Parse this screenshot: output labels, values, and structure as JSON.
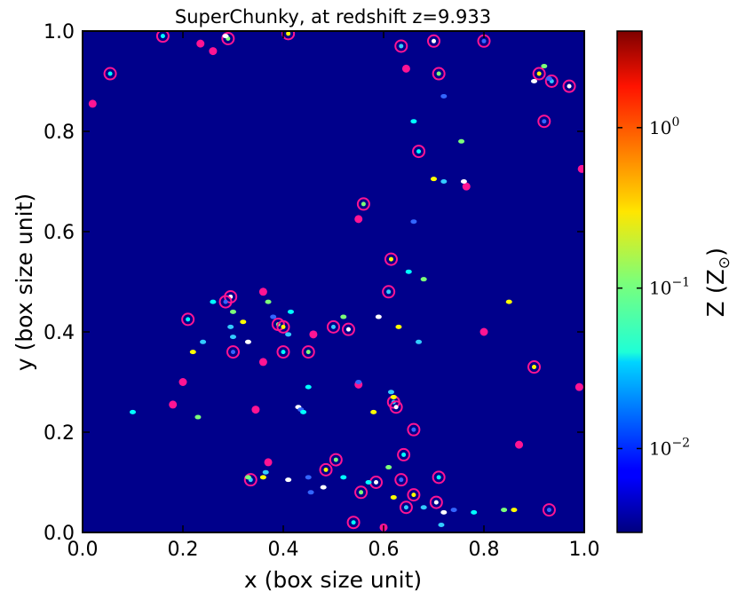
{
  "chart_data": {
    "type": "scatter",
    "title": "SuperChunky, at redshift z=9.933",
    "xlabel": "x (box size unit)",
    "ylabel": "y (box size unit)",
    "xlim": [
      0.0,
      1.0
    ],
    "ylim": [
      0.0,
      1.0
    ],
    "x_ticks": [
      "0.0",
      "0.2",
      "0.4",
      "0.6",
      "0.8",
      "1.0"
    ],
    "y_ticks": [
      "0.0",
      "0.2",
      "0.4",
      "0.6",
      "0.8",
      "1.0"
    ],
    "background_color": "#00008b",
    "marker_color": "#ff1493",
    "colorbar": {
      "label": "Z (Z",
      "label_symbol": "⊙",
      "label_close": ")",
      "scale": "log",
      "colormap": "jet",
      "ticks": [
        {
          "base": "10",
          "exp": "0",
          "value": 1.0
        },
        {
          "base": "10",
          "exp": "−1",
          "value": 0.1
        },
        {
          "base": "10",
          "exp": "−2",
          "value": 0.01
        }
      ],
      "range": [
        0.003,
        4.0
      ]
    },
    "series": [
      {
        "marker": "ring",
        "points": [
          [
            0.16,
            0.99
          ],
          [
            0.29,
            0.985
          ],
          [
            0.41,
            0.995
          ],
          [
            0.635,
            0.97
          ],
          [
            0.7,
            0.98
          ],
          [
            0.8,
            0.98
          ],
          [
            0.055,
            0.915
          ],
          [
            0.71,
            0.915
          ],
          [
            0.91,
            0.915
          ],
          [
            0.935,
            0.9
          ],
          [
            0.97,
            0.89
          ],
          [
            0.92,
            0.82
          ],
          [
            0.67,
            0.76
          ],
          [
            0.56,
            0.655
          ],
          [
            0.615,
            0.545
          ],
          [
            0.61,
            0.48
          ],
          [
            0.295,
            0.47
          ],
          [
            0.285,
            0.46
          ],
          [
            0.21,
            0.425
          ],
          [
            0.39,
            0.415
          ],
          [
            0.4,
            0.41
          ],
          [
            0.5,
            0.41
          ],
          [
            0.53,
            0.405
          ],
          [
            0.3,
            0.36
          ],
          [
            0.4,
            0.36
          ],
          [
            0.45,
            0.36
          ],
          [
            0.9,
            0.33
          ],
          [
            0.62,
            0.26
          ],
          [
            0.625,
            0.25
          ],
          [
            0.66,
            0.205
          ],
          [
            0.64,
            0.155
          ],
          [
            0.505,
            0.145
          ],
          [
            0.485,
            0.125
          ],
          [
            0.335,
            0.105
          ],
          [
            0.585,
            0.1
          ],
          [
            0.635,
            0.105
          ],
          [
            0.71,
            0.11
          ],
          [
            0.555,
            0.08
          ],
          [
            0.66,
            0.075
          ],
          [
            0.645,
            0.05
          ],
          [
            0.705,
            0.06
          ],
          [
            0.93,
            0.045
          ],
          [
            0.54,
            0.02
          ]
        ]
      },
      {
        "marker": "dot",
        "points": [
          [
            0.235,
            0.975
          ],
          [
            0.26,
            0.96
          ],
          [
            0.645,
            0.925
          ],
          [
            0.02,
            0.855
          ],
          [
            0.995,
            0.725
          ],
          [
            0.765,
            0.69
          ],
          [
            0.55,
            0.625
          ],
          [
            0.36,
            0.48
          ],
          [
            0.46,
            0.395
          ],
          [
            0.36,
            0.34
          ],
          [
            0.55,
            0.295
          ],
          [
            0.2,
            0.3
          ],
          [
            0.18,
            0.255
          ],
          [
            0.345,
            0.245
          ],
          [
            0.8,
            0.4
          ],
          [
            0.87,
            0.175
          ],
          [
            0.99,
            0.29
          ],
          [
            0.37,
            0.14
          ],
          [
            0.6,
            0.01
          ]
        ]
      },
      {
        "marker": "blob",
        "points": [
          [
            0.26,
            0.46
          ],
          [
            0.3,
            0.44
          ],
          [
            0.32,
            0.42
          ],
          [
            0.295,
            0.41
          ],
          [
            0.33,
            0.38
          ],
          [
            0.38,
            0.43
          ],
          [
            0.415,
            0.44
          ],
          [
            0.52,
            0.43
          ],
          [
            0.62,
            0.27
          ],
          [
            0.615,
            0.28
          ],
          [
            0.43,
            0.25
          ],
          [
            0.435,
            0.245
          ],
          [
            0.44,
            0.24
          ],
          [
            0.33,
            0.11
          ],
          [
            0.36,
            0.11
          ],
          [
            0.365,
            0.12
          ],
          [
            0.41,
            0.105
          ],
          [
            0.45,
            0.11
          ],
          [
            0.52,
            0.11
          ],
          [
            0.61,
            0.13
          ],
          [
            0.62,
            0.07
          ],
          [
            0.68,
            0.05
          ],
          [
            0.72,
            0.04
          ],
          [
            0.74,
            0.045
          ],
          [
            0.78,
            0.04
          ],
          [
            0.84,
            0.045
          ],
          [
            0.86,
            0.045
          ],
          [
            0.715,
            0.015
          ],
          [
            0.9,
            0.9
          ],
          [
            0.93,
            0.905
          ],
          [
            0.66,
            0.82
          ],
          [
            0.755,
            0.78
          ],
          [
            0.7,
            0.705
          ],
          [
            0.72,
            0.7
          ],
          [
            0.76,
            0.7
          ],
          [
            0.66,
            0.62
          ],
          [
            0.65,
            0.52
          ],
          [
            0.68,
            0.505
          ],
          [
            0.63,
            0.41
          ],
          [
            0.67,
            0.38
          ],
          [
            0.59,
            0.43
          ],
          [
            0.55,
            0.3
          ],
          [
            0.45,
            0.29
          ],
          [
            0.37,
            0.46
          ],
          [
            0.22,
            0.36
          ],
          [
            0.24,
            0.38
          ],
          [
            0.285,
            0.99
          ],
          [
            0.72,
            0.87
          ],
          [
            0.1,
            0.24
          ],
          [
            0.23,
            0.23
          ],
          [
            0.85,
            0.46
          ],
          [
            0.41,
            0.395
          ],
          [
            0.48,
            0.09
          ],
          [
            0.455,
            0.08
          ],
          [
            0.57,
            0.1
          ],
          [
            0.92,
            0.93
          ],
          [
            0.58,
            0.24
          ],
          [
            0.3,
            0.39
          ]
        ]
      }
    ]
  }
}
